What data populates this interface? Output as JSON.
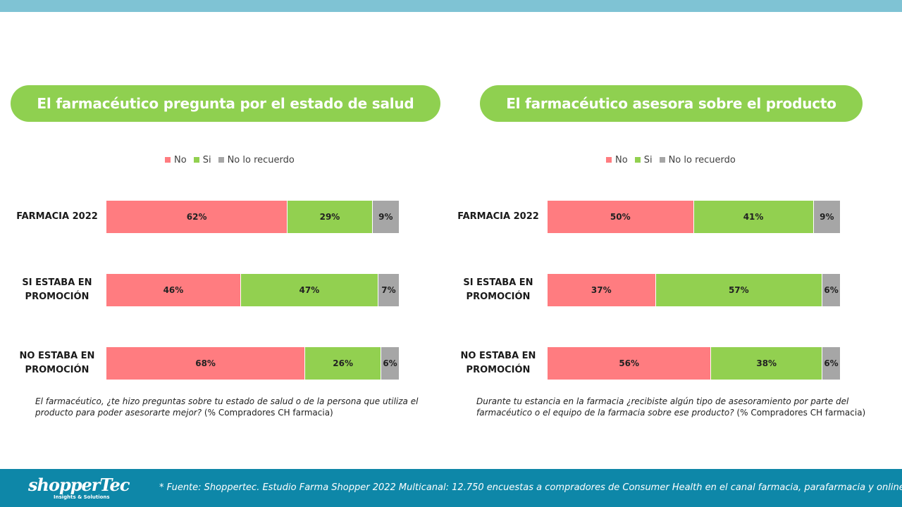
{
  "colors": {
    "no": "#ff7c80",
    "si": "#92d050",
    "no_recuerdo": "#a6a6a6",
    "pill": "#8fd050",
    "top_bar": "#7fc3d4",
    "footer": "#0e87a8"
  },
  "legend": [
    {
      "key": "no",
      "label": "No"
    },
    {
      "key": "si",
      "label": "Si"
    },
    {
      "key": "no_recuerdo",
      "label": "No lo recuerdo"
    }
  ],
  "chart_data": [
    {
      "type": "bar",
      "orientation": "horizontal-stacked-100",
      "title": "El farmacéutico pregunta por el estado de salud",
      "categories": [
        "FARMACIA 2022",
        "SI ESTABA EN PROMOCIÓN",
        "NO ESTABA EN PROMOCIÓN"
      ],
      "series": [
        {
          "name": "No",
          "values": [
            62,
            46,
            68
          ]
        },
        {
          "name": "Si",
          "values": [
            29,
            47,
            26
          ]
        },
        {
          "name": "No lo recuerdo",
          "values": [
            9,
            7,
            6
          ]
        }
      ],
      "value_suffix": "%",
      "legend_position": "top",
      "grid": false
    },
    {
      "type": "bar",
      "orientation": "horizontal-stacked-100",
      "title": "El farmacéutico asesora sobre el producto",
      "categories": [
        "FARMACIA 2022",
        "SI ESTABA EN PROMOCIÓN",
        "NO ESTABA EN PROMOCIÓN"
      ],
      "series": [
        {
          "name": "No",
          "values": [
            50,
            37,
            56
          ]
        },
        {
          "name": "Si",
          "values": [
            41,
            57,
            38
          ]
        },
        {
          "name": "No lo recuerdo",
          "values": [
            9,
            6,
            6
          ]
        }
      ],
      "value_suffix": "%",
      "legend_position": "top",
      "grid": false
    }
  ],
  "category_lines": [
    [
      "FARMACIA 2022"
    ],
    [
      "SI ESTABA EN",
      "PROMOCIÓN"
    ],
    [
      "NO ESTABA EN",
      "PROMOCIÓN"
    ]
  ],
  "notes": {
    "left_italic": "El farmacéutico, ¿te hizo preguntas sobre tu estado de salud o de la persona que utiliza el producto para poder asesorarte mejor?",
    "left_plain": " (% Compradores CH farmacia)",
    "right_italic": "Durante tu estancia en la farmacia ¿recibiste algún tipo de asesoramiento  por parte del farmacéutico o el equipo de la farmacia sobre ese producto?",
    "right_plain": " (% Compradores CH farmacia)"
  },
  "footer": {
    "logo_name": "shopperTec",
    "logo_sub": "Insights & Solutions",
    "source": "* Fuente: Shoppertec. Estudio Farma Shopper 2022 Multicanal: 12.750 encuestas a compradores de Consumer Health en el canal farmacia, parafarmacia y online."
  }
}
